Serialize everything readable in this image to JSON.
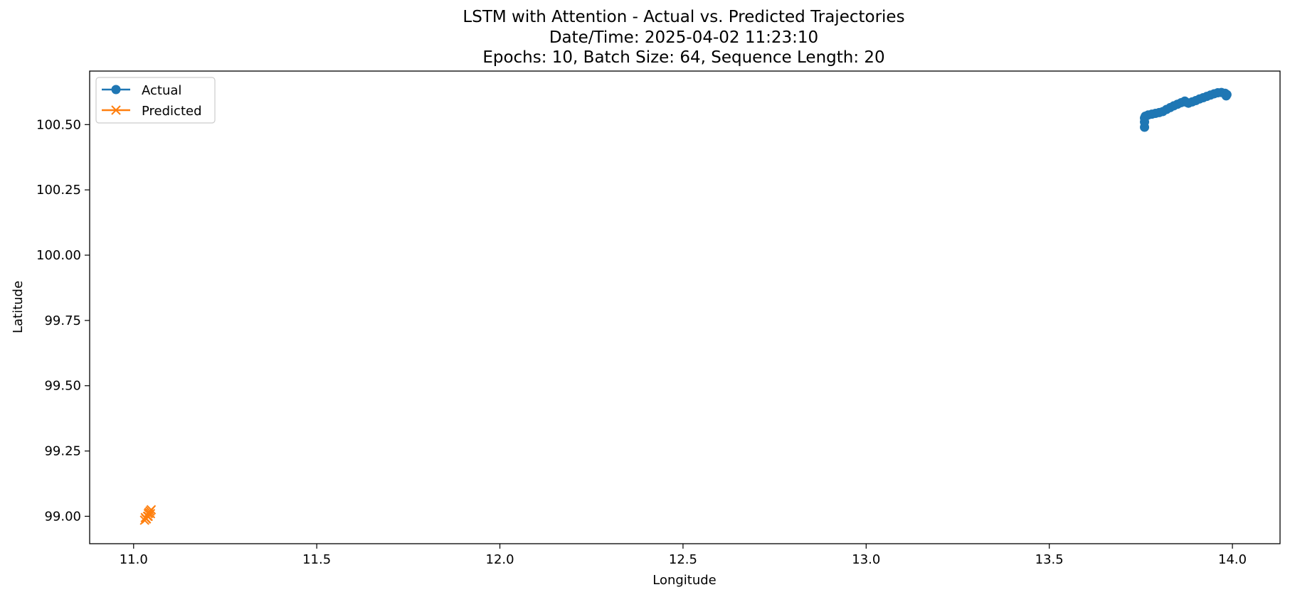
{
  "chart_data": {
    "type": "line",
    "title": "LSTM with Attention - Actual vs. Predicted Trajectories",
    "subtitle_lines": [
      "Date/Time: 2025-04-02 11:23:10",
      "Epochs: 10, Batch Size: 64, Sequence Length: 20"
    ],
    "xlabel": "Longitude",
    "ylabel": "Latitude",
    "xlim": [
      10.88,
      14.13
    ],
    "ylim": [
      98.895,
      100.705
    ],
    "xticks": [
      "11.0",
      "11.5",
      "12.0",
      "12.5",
      "13.0",
      "13.5",
      "14.0"
    ],
    "yticks": [
      "99.00",
      "99.25",
      "99.50",
      "99.75",
      "100.00",
      "100.25",
      "100.50"
    ],
    "grid": false,
    "legend_position": "top-left",
    "series": [
      {
        "name": "Actual",
        "color": "#1f77b4",
        "marker": "circle",
        "x": [
          13.76,
          13.76,
          13.76,
          13.762,
          13.77,
          13.78,
          13.79,
          13.8,
          13.81,
          13.82,
          13.83,
          13.84,
          13.85,
          13.86,
          13.87,
          13.875,
          13.88,
          13.89,
          13.9,
          13.91,
          13.92,
          13.93,
          13.94,
          13.95,
          13.96,
          13.97,
          13.98,
          13.985,
          13.983
        ],
        "y": [
          100.49,
          100.51,
          100.525,
          100.532,
          100.537,
          100.54,
          100.543,
          100.546,
          100.55,
          100.558,
          100.565,
          100.572,
          100.578,
          100.584,
          100.59,
          100.585,
          100.582,
          100.587,
          100.592,
          100.598,
          100.603,
          100.608,
          100.613,
          100.618,
          100.622,
          100.623,
          100.62,
          100.615,
          100.61
        ]
      },
      {
        "name": "Predicted",
        "color": "#ff7f0e",
        "marker": "x",
        "x": [
          11.03,
          11.045,
          11.035,
          11.04,
          11.032,
          11.048,
          11.038,
          11.042,
          11.034,
          11.046,
          11.04
        ],
        "y": [
          98.985,
          99.02,
          98.99,
          99.01,
          98.995,
          99.025,
          99.0,
          99.015,
          98.99,
          99.01,
          99.0
        ]
      }
    ]
  }
}
